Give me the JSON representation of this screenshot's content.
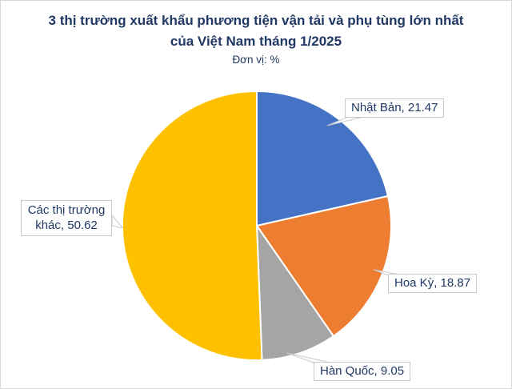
{
  "header": {
    "title_line1": "3 thị trường xuất khẩu phương tiện vận tải và phụ tùng lớn nhất",
    "title_line2": "của Việt Nam tháng 1/2025",
    "unit_label": "Đơn vị: %"
  },
  "colors": {
    "title_text": "#1F3864",
    "label_text": "#1F3864",
    "label_box_border": "#C6CAD0",
    "page_border": "#D5D7D9",
    "slice_separator": "#FFFFFF"
  },
  "chart_data": {
    "type": "pie",
    "title": "3 thị trường xuất khẩu phương tiện vận tải và phụ tùng lớn nhất của Việt Nam tháng 1/2025",
    "subtitle": "Đơn vị: %",
    "unit": "%",
    "start_angle_deg": 0,
    "direction": "clockwise",
    "legend": "none",
    "labels_style": "callout-boxes",
    "slices": [
      {
        "label": "Nhật Bản",
        "value": 21.47,
        "color": "#4472C4",
        "display": "Nhật Bản, 21.47"
      },
      {
        "label": "Hoa Kỳ",
        "value": 18.87,
        "color": "#ED7D31",
        "display": "Hoa Kỳ, 18.87"
      },
      {
        "label": "Hàn Quốc",
        "value": 9.05,
        "color": "#A5A5A5",
        "display": "Hàn Quốc, 9.05"
      },
      {
        "label": "Các thị trường khác",
        "value": 50.62,
        "color": "#FFC000",
        "display": "Các thị trường khác, 50.62"
      }
    ]
  }
}
